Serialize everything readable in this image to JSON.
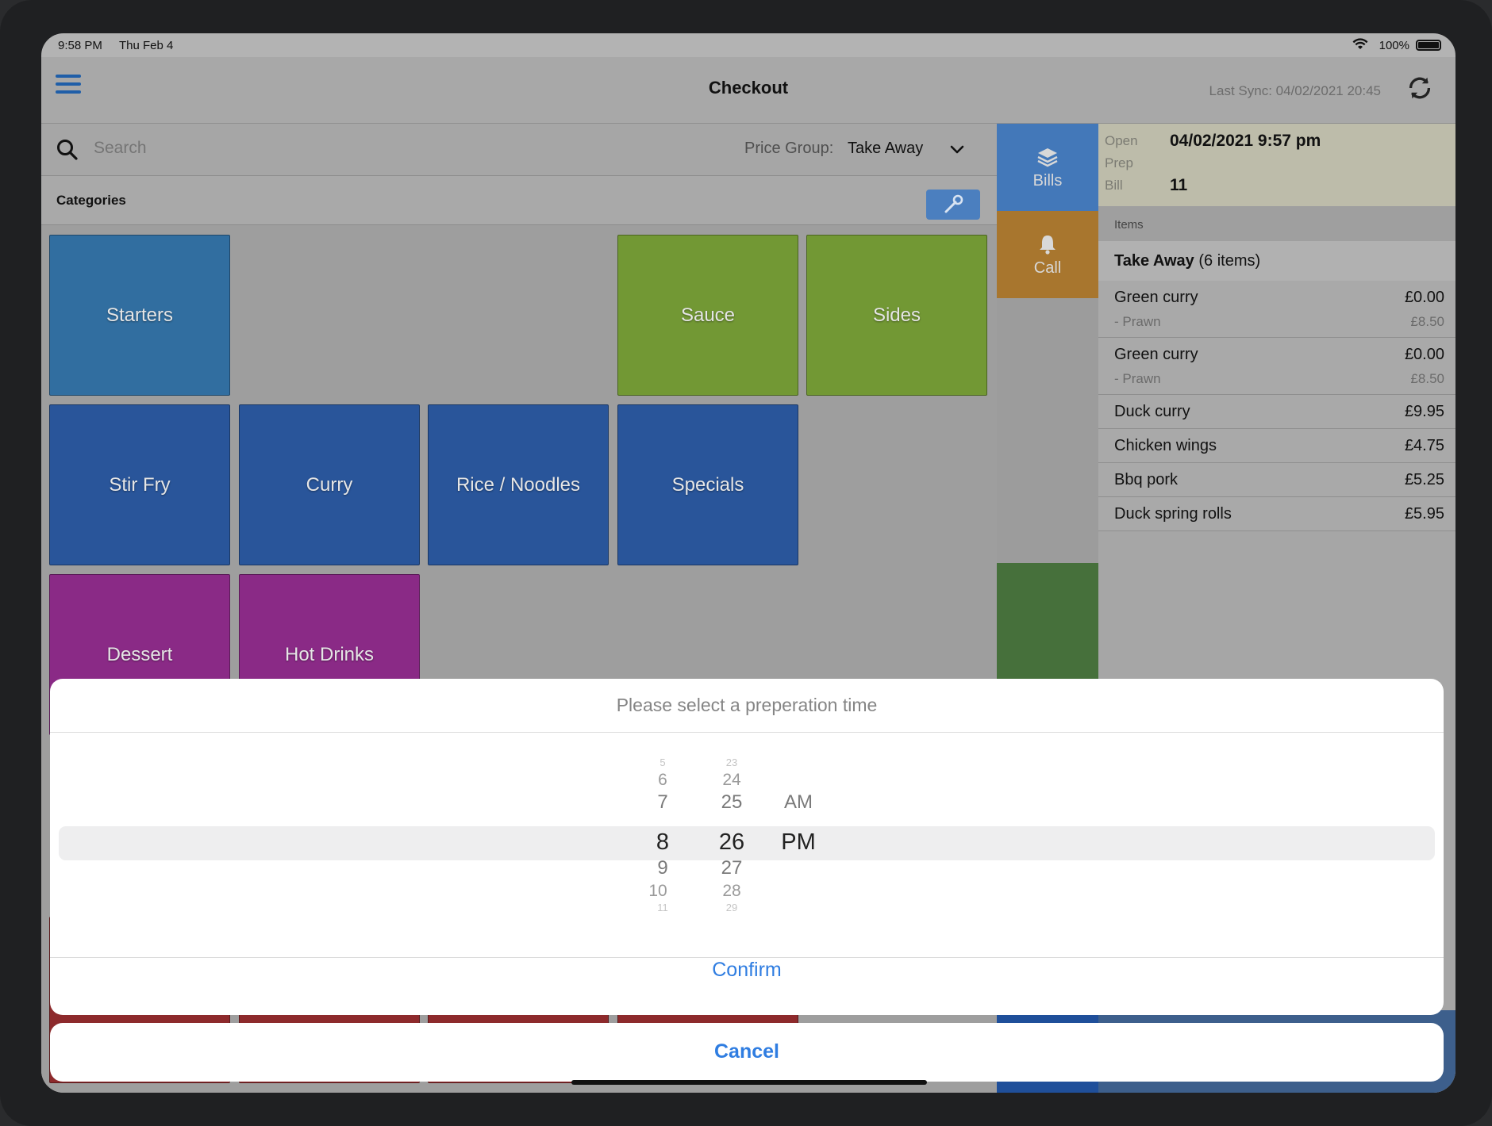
{
  "status_bar": {
    "time": "9:58 PM",
    "date": "Thu Feb 4",
    "battery": "100%"
  },
  "nav": {
    "title": "Checkout",
    "last_sync": "Last Sync: 04/02/2021 20:45"
  },
  "search": {
    "placeholder": "Search",
    "price_group_label": "Price Group:",
    "price_group_value": "Take Away"
  },
  "categories": {
    "label": "Categories",
    "tiles": [
      "Starters",
      "Sauce",
      "Sides",
      "Stir Fry",
      "Curry",
      "Rice / Noodles",
      "Specials",
      "Dessert",
      "Hot Drinks"
    ]
  },
  "side_buttons": {
    "bills": "Bills",
    "call": "Call"
  },
  "order": {
    "open_label": "Open",
    "open_value": "04/02/2021 9:57 pm",
    "prep_label": "Prep",
    "bill_label": "Bill",
    "bill_value": "11",
    "items_label": "Items",
    "group_name": "Take Away",
    "group_count": "(6 items)",
    "items": [
      {
        "name": "Green curry",
        "price": "£0.00",
        "modifier": "- Prawn",
        "modifier_price": "£8.50"
      },
      {
        "name": "Green curry",
        "price": "£0.00",
        "modifier": "- Prawn",
        "modifier_price": "£8.50"
      },
      {
        "name": "Duck curry",
        "price": "£9.95"
      },
      {
        "name": "Chicken wings",
        "price": "£4.75"
      },
      {
        "name": "Bbq pork",
        "price": "£5.25"
      },
      {
        "name": "Duck spring rolls",
        "price": "£5.95"
      }
    ]
  },
  "sheet": {
    "title": "Please select a preperation time",
    "hours": [
      "5",
      "6",
      "7",
      "8",
      "9",
      "10",
      "11"
    ],
    "minutes": [
      "23",
      "24",
      "25",
      "26",
      "27",
      "28",
      "29"
    ],
    "meridiem": [
      "AM",
      "PM"
    ],
    "selected": {
      "hour": "8",
      "minute": "26",
      "meridiem": "PM"
    },
    "confirm": "Confirm",
    "cancel": "Cancel"
  },
  "colors": {
    "accent": "#2f7de1",
    "starters": "#316ea0",
    "mains": "#29559a",
    "sauces": "#729834",
    "desserts": "#8a2a86"
  }
}
